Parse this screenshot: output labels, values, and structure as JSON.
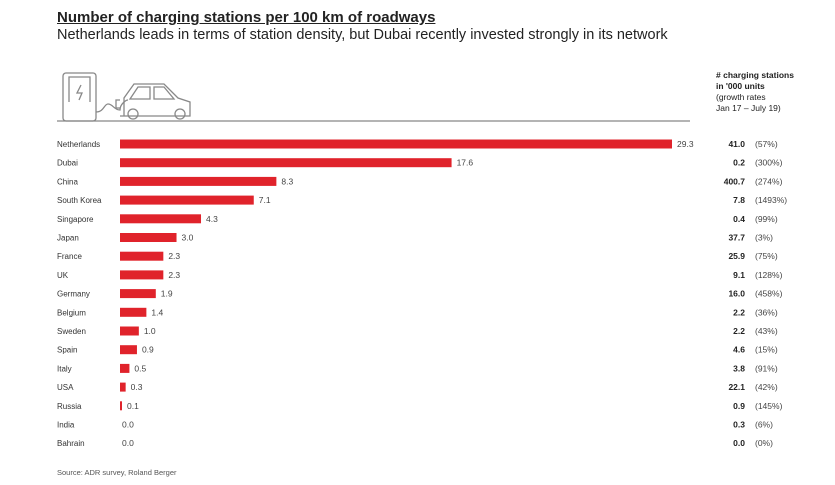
{
  "title": "Number of charging stations per 100 km of roadways",
  "subtitle": "Netherlands leads in terms of station density, but Dubai recently invested strongly in its network",
  "column_header": {
    "line1": "# charging stations",
    "line2": "in '000 units",
    "line3": "(growth rates",
    "line4": "Jan 17 – July 19)"
  },
  "source": "Source: ADR survey, Roland Berger",
  "colors": {
    "bar": "#e0232b",
    "line": "#888888"
  },
  "icons": [
    "charging-station-icon",
    "electric-car-icon"
  ],
  "chart_data": {
    "type": "bar",
    "orientation": "horizontal",
    "categories": [
      "Netherlands",
      "Dubai",
      "China",
      "South Korea",
      "Singapore",
      "Japan",
      "France",
      "UK",
      "Germany",
      "Belgium",
      "Sweden",
      "Spain",
      "Italy",
      "USA",
      "Russia",
      "India",
      "Bahrain"
    ],
    "values": [
      29.3,
      17.6,
      8.3,
      7.1,
      4.3,
      3.0,
      2.3,
      2.3,
      1.9,
      1.4,
      1.0,
      0.9,
      0.5,
      0.3,
      0.1,
      0.0,
      0.0
    ],
    "value_labels": [
      "29.3",
      "17.6",
      "8.3",
      "7.1",
      "4.3",
      "3.0",
      "2.3",
      "2.3",
      "1.9",
      "1.4",
      "1.0",
      "0.9",
      "0.5",
      "0.3",
      "0.1",
      "0.0",
      "0.0"
    ],
    "stations_thousands": [
      "41.0",
      "0.2",
      "400.7",
      "7.8",
      "0.4",
      "37.7",
      "25.9",
      "9.1",
      "16.0",
      "2.2",
      "2.2",
      "4.6",
      "3.8",
      "22.1",
      "0.9",
      "0.3",
      "0.0"
    ],
    "growth_rates": [
      "(57%)",
      "(300%)",
      "(274%)",
      "(1493%)",
      "(99%)",
      "(3%)",
      "(75%)",
      "(128%)",
      "(458%)",
      "(36%)",
      "(43%)",
      "(15%)",
      "(91%)",
      "(42%)",
      "(145%)",
      "(6%)",
      "(0%)"
    ],
    "grid": false
  }
}
